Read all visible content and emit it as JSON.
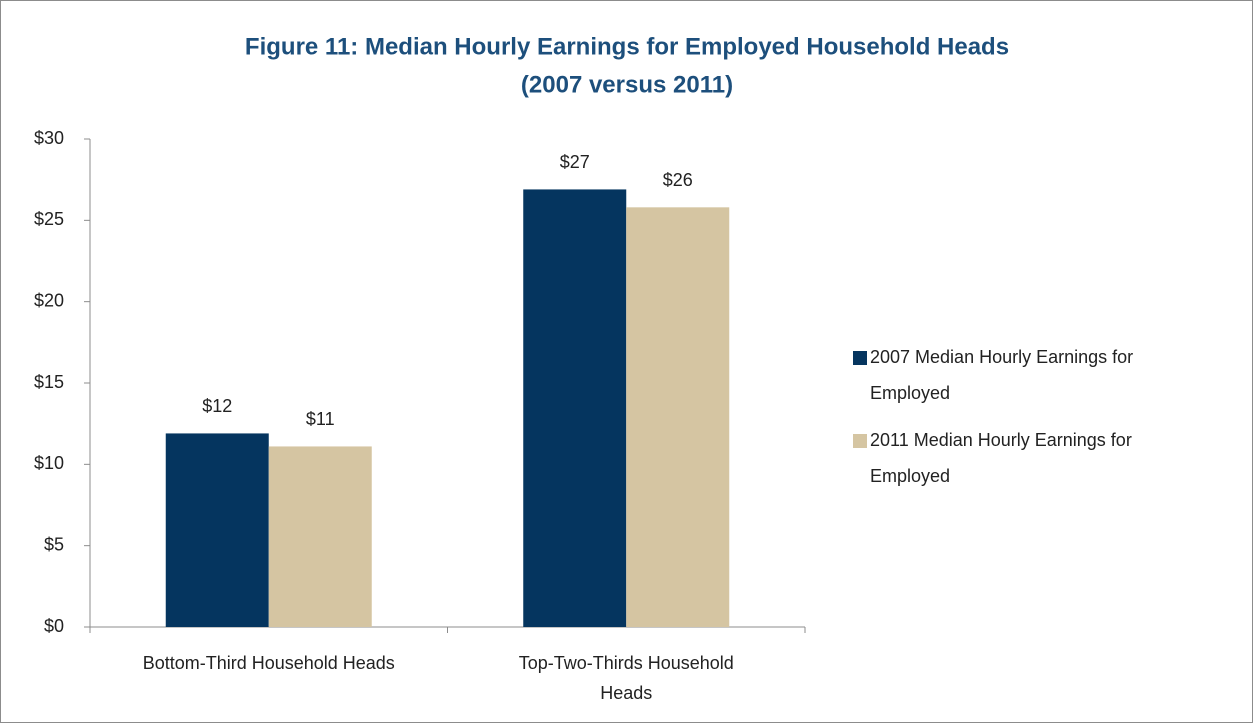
{
  "chart_data": {
    "type": "bar",
    "title": "Figure 11: Median Hourly Earnings for Employed Household Heads",
    "subtitle": "(2007 versus 2011)",
    "categories": [
      "Bottom-Third Household Heads",
      "Top-Two-Thirds Household Heads"
    ],
    "series": [
      {
        "name": "2007 Median Hourly Earnings for Employed",
        "color": "#05355f",
        "values": [
          11.9,
          26.9
        ],
        "value_labels": [
          "$12",
          "$27"
        ]
      },
      {
        "name": "2011 Median Hourly Earnings for Employed",
        "color": "#d5c5a2",
        "values": [
          11.1,
          25.8
        ],
        "value_labels": [
          "$11",
          "$26"
        ]
      }
    ],
    "ylim": [
      0,
      30
    ],
    "yticks": [
      {
        "value": 0,
        "label": "$0"
      },
      {
        "value": 5,
        "label": "$5"
      },
      {
        "value": 10,
        "label": "$10"
      },
      {
        "value": 15,
        "label": "$15"
      },
      {
        "value": 20,
        "label": "$20"
      },
      {
        "value": 25,
        "label": "$25"
      },
      {
        "value": 30,
        "label": "$30"
      }
    ],
    "grid": false,
    "legend": "right"
  }
}
